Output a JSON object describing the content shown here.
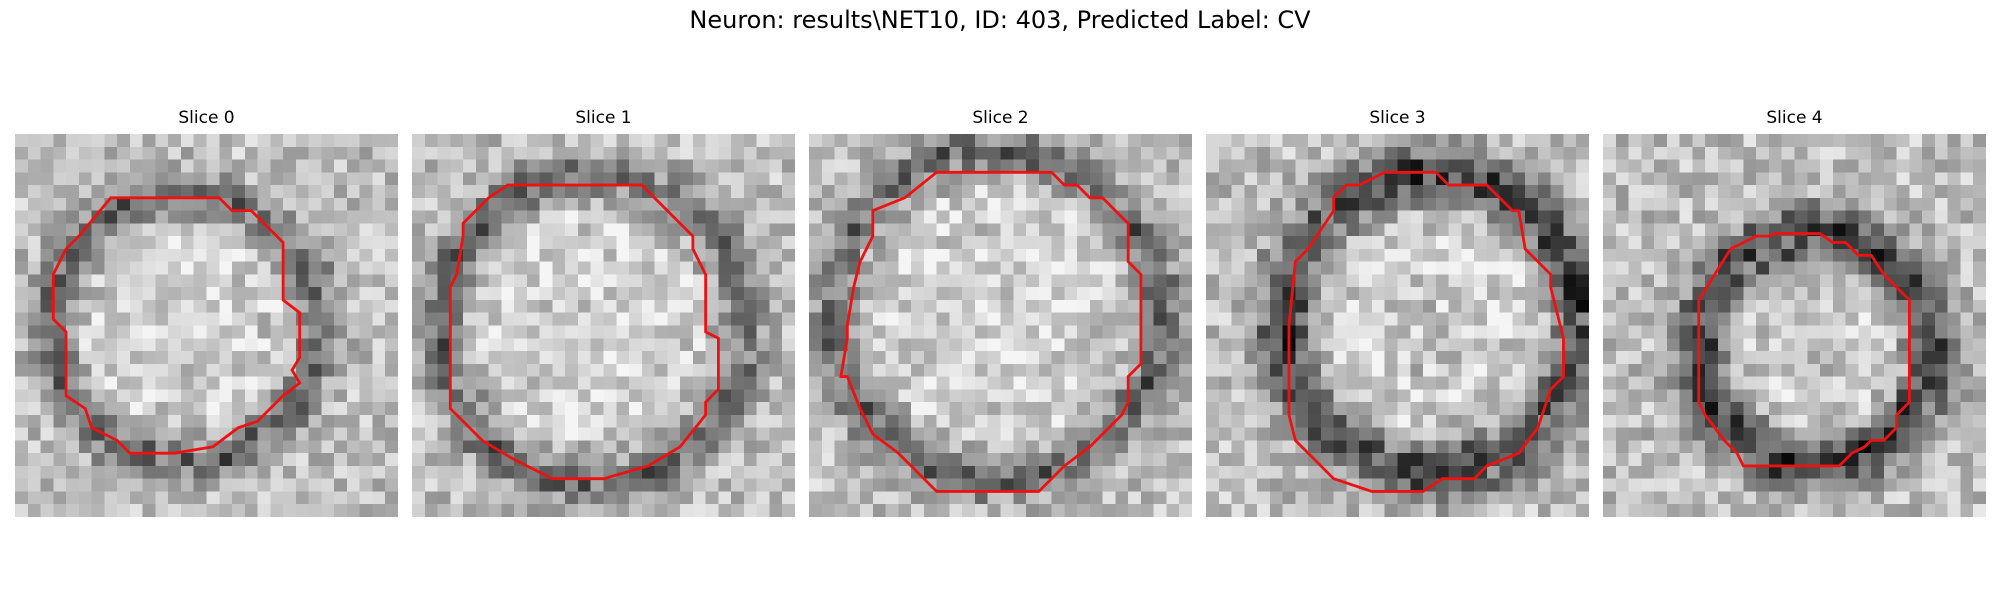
{
  "figure": {
    "title": "Neuron: results\\NET10, ID: 403, Predicted Label: CV"
  },
  "panels": [
    {
      "label": "Slice 0",
      "contour_color": "#ee1111",
      "dark_ring": "partial"
    },
    {
      "label": "Slice 1",
      "contour_color": "#ee1111",
      "dark_ring": "partial"
    },
    {
      "label": "Slice 2",
      "contour_color": "#ee1111",
      "dark_ring": "partial"
    },
    {
      "label": "Slice 3",
      "contour_color": "#ee1111",
      "dark_ring": "strong"
    },
    {
      "label": "Slice 4",
      "contour_color": "#ee1111",
      "dark_ring": "strong"
    }
  ]
}
